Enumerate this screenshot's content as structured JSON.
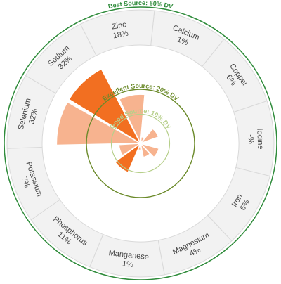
{
  "chart_data": {
    "type": "radial-bar",
    "nutrients": [
      {
        "name": "Calcium",
        "value_text": "1%",
        "dv": 1
      },
      {
        "name": "Copper",
        "value_text": "6%",
        "dv": 6
      },
      {
        "name": "Iodine",
        "value_text": "-%",
        "dv": null
      },
      {
        "name": "Iron",
        "value_text": "6%",
        "dv": 6
      },
      {
        "name": "Magnesium",
        "value_text": "4%",
        "dv": 4
      },
      {
        "name": "Manganese",
        "value_text": "1%",
        "dv": 1
      },
      {
        "name": "Phosphorus",
        "value_text": "11%",
        "dv": 11
      },
      {
        "name": "Potassium",
        "value_text": "7%",
        "dv": 7
      },
      {
        "name": "Selenium",
        "value_text": "32%",
        "dv": 32
      },
      {
        "name": "Sodium",
        "value_text": "32%",
        "dv": 32
      },
      {
        "name": "Zinc",
        "value_text": "18%",
        "dv": 18
      }
    ],
    "reference_rings": [
      {
        "label": "Good Source: 10% DV",
        "dv": 10,
        "color": "#b6cf8a"
      },
      {
        "label": "Excellent Source: 20% DV",
        "dv": 20,
        "color": "#6b8a2a"
      },
      {
        "label": "Best Source: 50% DV",
        "dv": 50,
        "color": "#2e8b3a"
      }
    ],
    "colors": {
      "bar_light": "#f7b38f",
      "bar_dark": "#f26f21",
      "segment_fill": "#f2f2f2",
      "segment_stroke": "#d9d9d9"
    }
  }
}
